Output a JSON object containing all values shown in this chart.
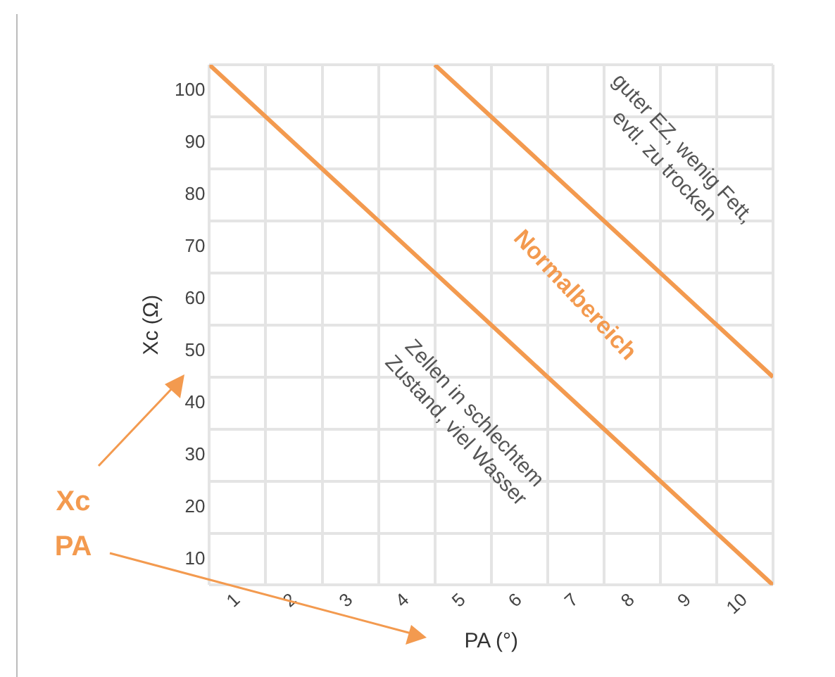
{
  "chart_data": {
    "type": "line",
    "xlabel": "PA (°)",
    "ylabel": "Xc (Ω)",
    "xlim": [
      0.5,
      10.5
    ],
    "ylim": [
      5,
      105
    ],
    "xticks": [
      {
        "value": 0.5,
        "label": null
      },
      1,
      {
        "value": 1.5,
        "label": null
      },
      2,
      {
        "value": 2.5,
        "label": null
      },
      3,
      {
        "value": 3.5,
        "label": null
      },
      4,
      {
        "value": 4.5,
        "label": null
      },
      5,
      {
        "value": 5.5,
        "label": null
      },
      6,
      {
        "value": 6.5,
        "label": null
      },
      7,
      {
        "value": 7.5,
        "label": null
      },
      8,
      {
        "value": 8.5,
        "label": null
      },
      9,
      {
        "value": 9.5,
        "label": null
      },
      10,
      {
        "value": 10.5,
        "label": null
      }
    ],
    "yticks": [
      {
        "value": 5,
        "label": null
      },
      10,
      {
        "value": 15,
        "label": null
      },
      20,
      {
        "value": 25,
        "label": null
      },
      30,
      {
        "value": 35,
        "label": null
      },
      40,
      {
        "value": 45,
        "label": null
      },
      50,
      {
        "value": 55,
        "label": null
      },
      60,
      {
        "value": 65,
        "label": null
      },
      70,
      {
        "value": 75,
        "label": null
      },
      80,
      {
        "value": 85,
        "label": null
      },
      90,
      {
        "value": 95,
        "label": null
      },
      100,
      {
        "value": 105,
        "label": null
      }
    ],
    "grid": true,
    "legend": false,
    "marker": "none",
    "line_style": "solid",
    "series": [
      {
        "color": "#f39a4f",
        "x": [
          0.5,
          10.5
        ],
        "values": [
          105,
          5
        ]
      },
      {
        "color": "#f39a4f",
        "x": [
          4.5,
          10.5
        ],
        "values": [
          105,
          45
        ]
      }
    ],
    "annotations": [
      "guter EZ, wenig Fett,\nevtl. zu trocken",
      "Normalbereich",
      "Zellen in schlechtem\nZustand, viel Wasser",
      "Xc",
      "PA"
    ]
  }
}
